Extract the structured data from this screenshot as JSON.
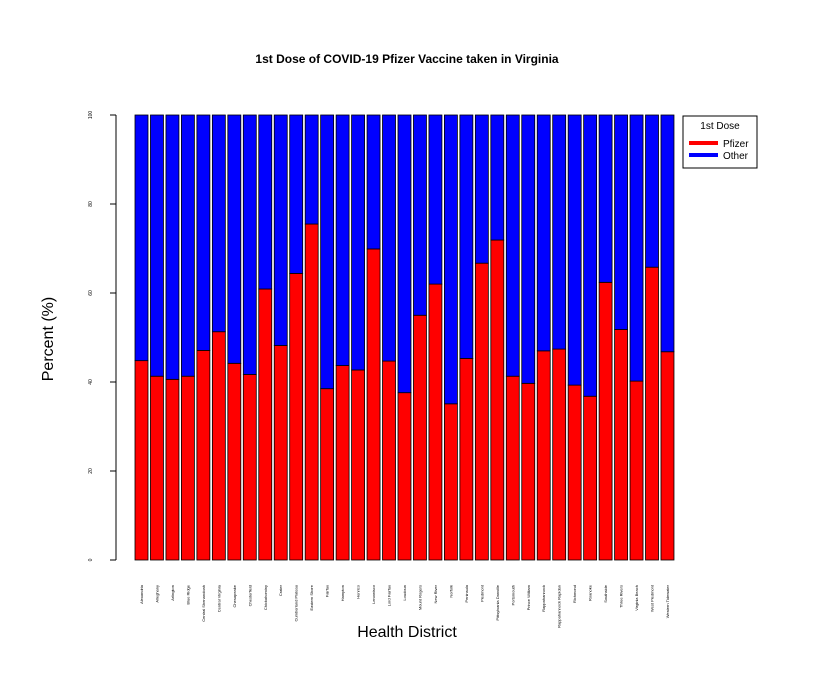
{
  "chart_data": {
    "type": "bar",
    "stacked": true,
    "percent": true,
    "title": "1st Dose of COVID-19 Pfizer Vaccine taken in Virginia",
    "xlabel": "Health District",
    "ylabel": "Percent (%)",
    "ylim": [
      0,
      100
    ],
    "yticks": [
      "0",
      "20",
      "40",
      "60",
      "80",
      "100"
    ],
    "categories": [
      "Alexandria",
      "Alleghany",
      "Arlington",
      "Blue Ridge",
      "Central Shenandoah",
      "Central Virginia",
      "Chesapeake",
      "Chesterfield",
      "Chickahominy",
      "Crater",
      "Cumberland Plateau",
      "Eastern Shore",
      "Fairfax",
      "Hampton",
      "Henrico",
      "Lenowisco",
      "Lord Fairfax",
      "Loudoun",
      "Mount Rogers",
      "New River",
      "Norfolk",
      "Peninsula",
      "Piedmont",
      "Pittsylvania Danville",
      "Portsmouth",
      "Prince William",
      "Rappahannock",
      "Rappahannock Rapidan",
      "Richmond",
      "Roanoke",
      "Southside",
      "Three Rivers",
      "Virginia Beach",
      "West Piedmont",
      "Western Tidewater"
    ],
    "series": [
      {
        "name": "Pfizer",
        "color": "#ff0000",
        "values": [
          44.8,
          41.3,
          40.6,
          41.3,
          47.1,
          51.3,
          44.2,
          41.7,
          60.9,
          48.2,
          64.4,
          75.5,
          38.5,
          43.7,
          42.7,
          69.9,
          44.7,
          37.6,
          55.0,
          62.0,
          35.1,
          45.3,
          66.7,
          71.9,
          41.3,
          39.7,
          47.0,
          47.4,
          39.3,
          36.8,
          62.4,
          51.8,
          40.2,
          65.8,
          46.8
        ]
      },
      {
        "name": "Other",
        "color": "#0000ff",
        "values": [
          55.2,
          58.7,
          59.4,
          58.7,
          52.9,
          48.7,
          55.8,
          58.3,
          39.1,
          51.8,
          35.6,
          24.5,
          61.5,
          56.3,
          57.3,
          30.1,
          55.3,
          62.4,
          45.0,
          38.0,
          64.9,
          54.7,
          33.3,
          28.1,
          58.7,
          60.3,
          53.0,
          52.6,
          60.7,
          63.2,
          37.6,
          48.2,
          59.8,
          34.2,
          53.2
        ]
      }
    ],
    "legend": {
      "title": "1st Dose",
      "position": "top-right"
    }
  }
}
